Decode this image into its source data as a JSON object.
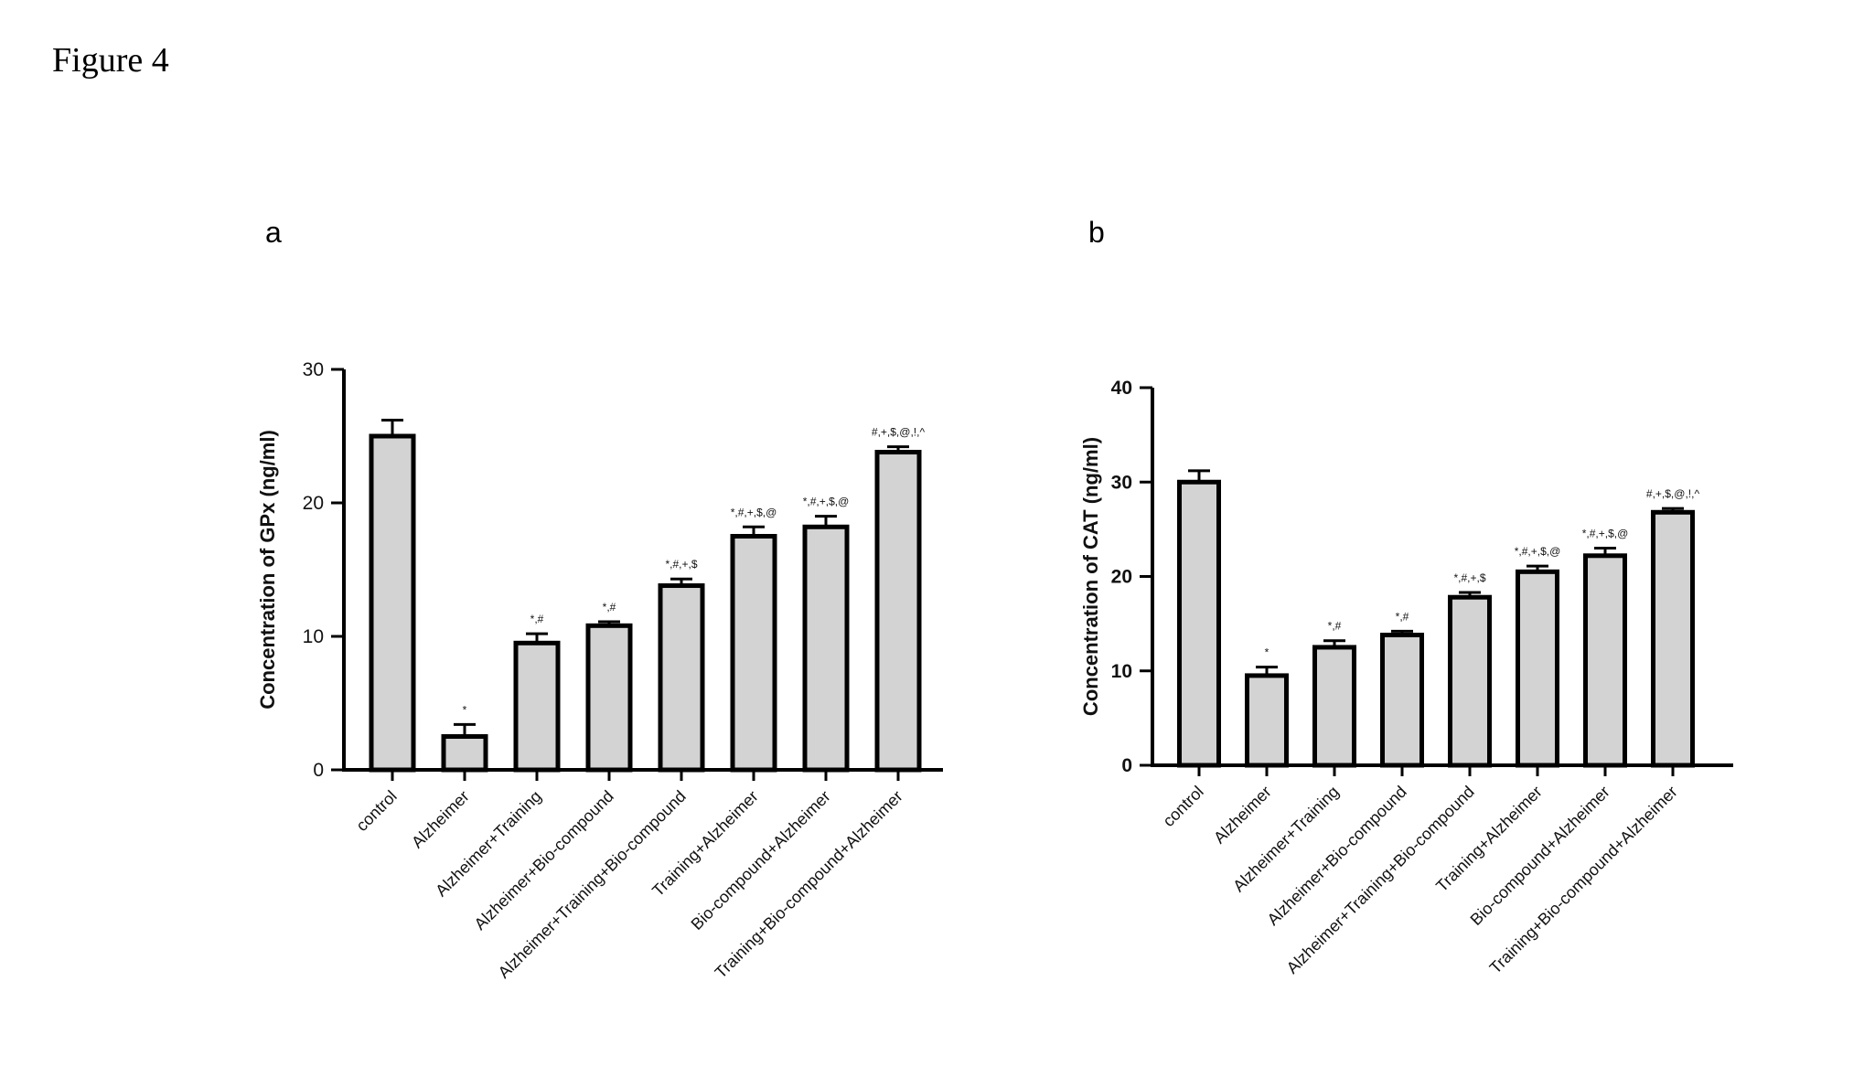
{
  "figure_title": "Figure 4",
  "panels": [
    {
      "label": "a"
    },
    {
      "label": "b"
    }
  ],
  "chart_data": [
    {
      "type": "bar",
      "panel": "a",
      "title": "",
      "ylabel": "Concentration of GPx (ng/ml)",
      "xlabel": "",
      "ylim": [
        0,
        30
      ],
      "yticks": [
        0,
        10,
        20,
        30
      ],
      "categories": [
        "control",
        "Alzheimer",
        "Alzheimer+Training",
        "Alzheimer+Bio-compound",
        "Alzheimer+Training+Bio-compound",
        "Training+Alzheimer",
        "Bio-compound+Alzheimer",
        "Training+Bio-compound+Alzheimer"
      ],
      "values": [
        25.0,
        2.5,
        9.5,
        10.8,
        13.8,
        17.5,
        18.2,
        23.8
      ],
      "error": [
        1.2,
        0.9,
        0.7,
        0.3,
        0.5,
        0.7,
        0.8,
        0.4
      ],
      "significance": [
        "",
        "*",
        "*,#",
        "*,#",
        "*,#,+,$",
        "*,#,+,$,@",
        "*,#,+,$,@",
        "#,+,$,@,!,^"
      ],
      "bar_color": "#d3d3d3",
      "edge_color": "#000000",
      "grid": false,
      "legend": "none"
    },
    {
      "type": "bar",
      "panel": "b",
      "title": "",
      "ylabel": "Concentration of CAT  (ng/ml)",
      "xlabel": "",
      "ylim": [
        0,
        40
      ],
      "yticks": [
        0,
        10,
        20,
        30,
        40
      ],
      "categories": [
        "control",
        "Alzheimer",
        "Alzheimer+Training",
        "Alzheimer+Bio-compound",
        "Alzheimer+Training+Bio-compound",
        "Training+Alzheimer",
        "Bio-compound+Alzheimer",
        "Training+Bio-compound+Alzheimer"
      ],
      "values": [
        30.0,
        9.5,
        12.5,
        13.8,
        17.8,
        20.5,
        22.2,
        26.8
      ],
      "error": [
        1.2,
        0.9,
        0.7,
        0.4,
        0.5,
        0.6,
        0.8,
        0.4
      ],
      "significance": [
        "",
        "*",
        "*,#",
        "*,#",
        "*,#,+,$",
        "*,#,+,$,@",
        "*,#,+,$,@",
        "#,+,$,@,!,^"
      ],
      "bar_color": "#d3d3d3",
      "edge_color": "#000000",
      "grid": false,
      "legend": "none"
    }
  ]
}
